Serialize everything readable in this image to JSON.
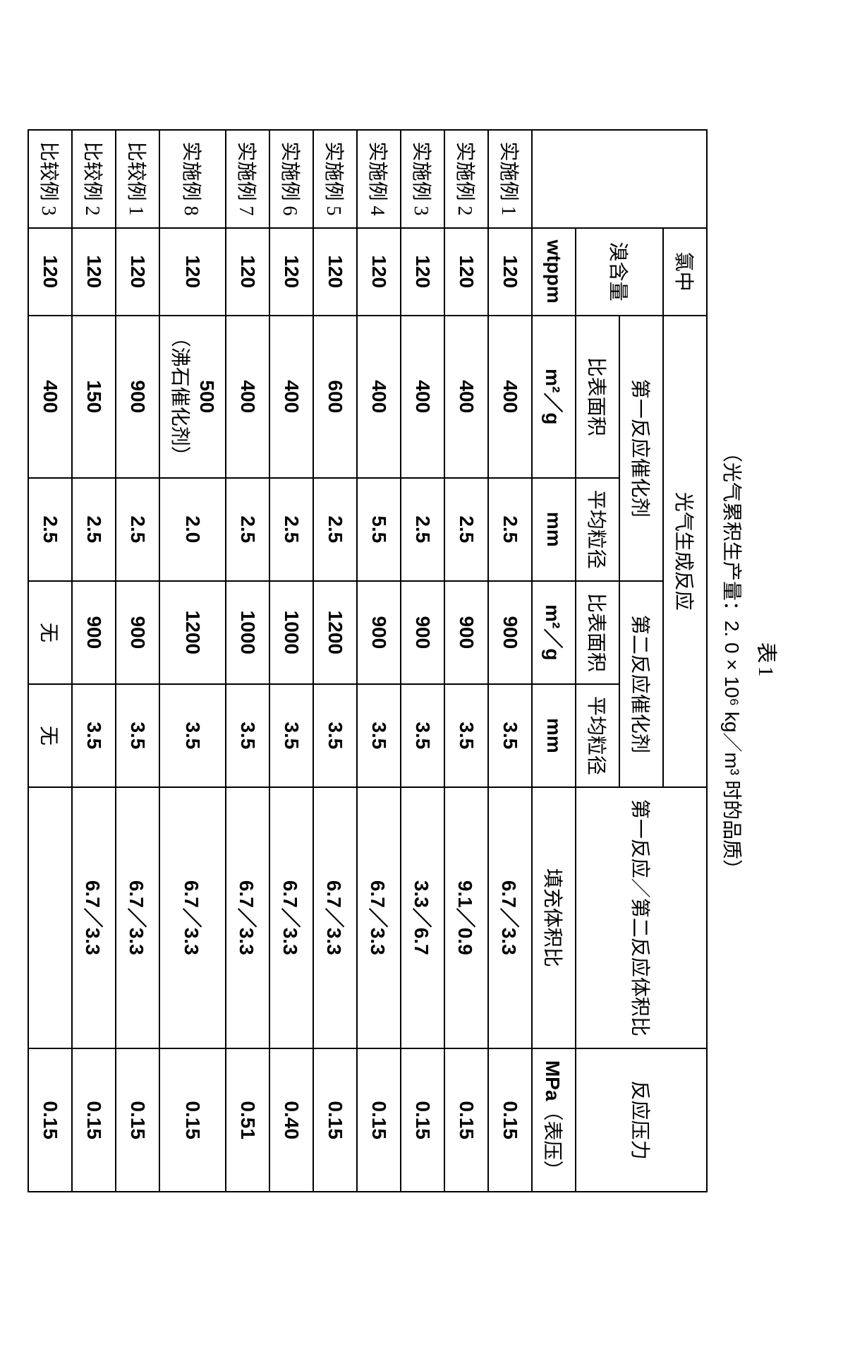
{
  "title": "表1",
  "subtitle_prefix": "（光气累积生产量：",
  "subtitle_value": "2. 0 × 10⁶ kg／m³",
  "subtitle_suffix": " 时的品质）",
  "headers": {
    "chlorine": "氯中",
    "bromine": "溴含量",
    "phosgene": "光气生成反应",
    "cat1": "第一反应催化剂",
    "cat2": "第二反应催化剂",
    "surface": "比表面积",
    "diameter": "平均粒径",
    "ratio": "第一反应／第二反应体积比",
    "ratio_unit": "填充体积比",
    "pressure": "反应压力"
  },
  "units": {
    "wtppm": "wtppm",
    "m2g": "m²／g",
    "mm": "mm",
    "mpa": "MPa（表压）"
  },
  "rows": [
    {
      "label": "实施例 1",
      "br": "120",
      "s1": "400",
      "d1": "2.5",
      "s2": "900",
      "d2": "3.5",
      "ratio": "6.7／3.3",
      "p": "0.15"
    },
    {
      "label": "实施例 2",
      "br": "120",
      "s1": "400",
      "d1": "2.5",
      "s2": "900",
      "d2": "3.5",
      "ratio": "9.1／0.9",
      "p": "0.15"
    },
    {
      "label": "实施例 3",
      "br": "120",
      "s1": "400",
      "d1": "2.5",
      "s2": "900",
      "d2": "3.5",
      "ratio": "3.3／6.7",
      "p": "0.15"
    },
    {
      "label": "实施例 4",
      "br": "120",
      "s1": "400",
      "d1": "5.5",
      "s2": "900",
      "d2": "3.5",
      "ratio": "6.7／3.3",
      "p": "0.15"
    },
    {
      "label": "实施例 5",
      "br": "120",
      "s1": "600",
      "d1": "2.5",
      "s2": "1200",
      "d2": "3.5",
      "ratio": "6.7／3.3",
      "p": "0.15"
    },
    {
      "label": "实施例 6",
      "br": "120",
      "s1": "400",
      "d1": "2.5",
      "s2": "1000",
      "d2": "3.5",
      "ratio": "6.7／3.3",
      "p": "0.40"
    },
    {
      "label": "实施例 7",
      "br": "120",
      "s1": "400",
      "d1": "2.5",
      "s2": "1000",
      "d2": "3.5",
      "ratio": "6.7／3.3",
      "p": "0.51"
    },
    {
      "label": "实施例 8",
      "br": "120",
      "s1": "500",
      "s1_note": "（沸石催化剂）",
      "d1": "2.0",
      "s2": "1200",
      "d2": "3.5",
      "ratio": "6.7／3.3",
      "p": "0.15"
    },
    {
      "label": "比较例 1",
      "br": "120",
      "s1": "900",
      "d1": "2.5",
      "s2": "900",
      "d2": "3.5",
      "ratio": "6.7／3.3",
      "p": "0.15"
    },
    {
      "label": "比较例 2",
      "br": "120",
      "s1": "150",
      "d1": "2.5",
      "s2": "900",
      "d2": "3.5",
      "ratio": "6.7／3.3",
      "p": "0.15"
    },
    {
      "label": "比较例 3",
      "br": "120",
      "s1": "400",
      "d1": "2.5",
      "s2": "无",
      "d2": "无",
      "ratio": "",
      "p": "0.15"
    }
  ]
}
